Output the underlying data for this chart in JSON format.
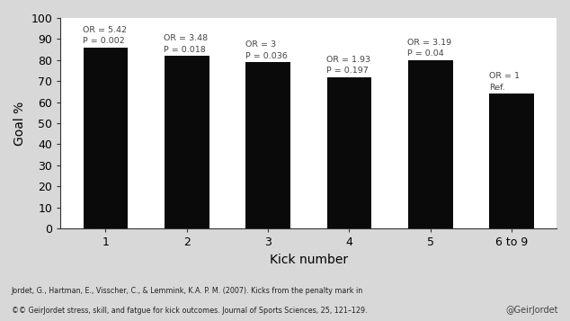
{
  "categories": [
    "1",
    "2",
    "3",
    "4",
    "5",
    "6 to 9"
  ],
  "values": [
    86,
    82,
    79,
    72,
    80,
    64
  ],
  "bar_color": "#0a0a0a",
  "xlabel": "Kick number",
  "ylabel": "Goal %",
  "ylim": [
    0,
    100
  ],
  "yticks": [
    0,
    10,
    20,
    30,
    40,
    50,
    60,
    70,
    80,
    90,
    100
  ],
  "annotations": [
    {
      "line1": "OR = 5.42",
      "line2": "P = 0.002"
    },
    {
      "line1": "OR = 3.48",
      "line2": "P = 0.018"
    },
    {
      "line1": "OR = 3",
      "line2": "P = 0.036"
    },
    {
      "line1": "OR = 1.93",
      "line2": "P = 0.197"
    },
    {
      "line1": "OR = 3.19",
      "line2": "P = 0.04"
    },
    {
      "line1": "OR = 1",
      "line2": "Ref."
    }
  ],
  "footnote_line1": "Jordet, G., Hartman, E., Visscher, C., & Lemmink, K.A. P. M. (2007). Kicks from the penalty mark in",
  "footnote_line2_normal": "stress, skill, and fatgue for kick outcomes. ",
  "footnote_line2_italic": "Journal of Sports Sciences",
  "footnote_line2_end": ", 25, 121–129.",
  "footnote_prefix": "©© GeirJordet",
  "watermark": "@GeirJordet",
  "background_color": "#d8d8d8",
  "plot_bg": "#ffffff"
}
